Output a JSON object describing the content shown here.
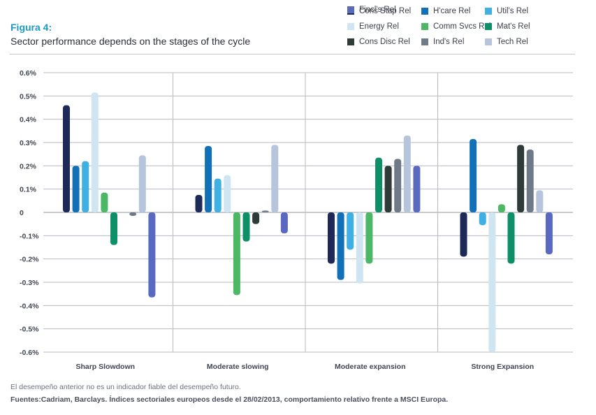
{
  "header": {
    "figure_label": "Figura 4:",
    "title": "Sector performance depends on the stages of the cycle"
  },
  "footer": {
    "note": "El desempeño anterior no es un indicador fiable del desempeño futuro.",
    "source": "Fuentes:Cadriam, Barclays. Índices sectoriales europeos desde el 28/02/2013, comportamiento relativo frente a MSCI Europa."
  },
  "chart_data": {
    "type": "bar",
    "title": "Sector performance depends on the stages of the cycle",
    "xlabel": "",
    "ylabel": "",
    "ylim": [
      -0.6,
      0.6
    ],
    "y_ticks": [
      0.6,
      0.5,
      0.4,
      0.3,
      0.2,
      0.1,
      0,
      -0.1,
      -0.2,
      -0.3,
      -0.4,
      -0.5,
      -0.6
    ],
    "y_tick_labels": [
      "0.6%",
      "0.5%",
      "0.4%",
      "0.3%",
      "0.2%",
      "0.1%",
      "0",
      "-0.1%",
      "-0.2%",
      "-0.3%",
      "-0.4%",
      "-0.5%",
      "-0.6%"
    ],
    "grid": true,
    "legend_position": "top-right",
    "categories": [
      "Sharp Slowdown",
      "Moderate slowing",
      "Moderate expansion",
      "Strong Expansion"
    ],
    "series": [
      {
        "name": "Cons Stap Rel",
        "color": "#1d2a57",
        "values": [
          0.46,
          0.075,
          -0.22,
          -0.19
        ]
      },
      {
        "name": "H'care Rel",
        "color": "#1170b8",
        "values": [
          0.2,
          0.285,
          -0.29,
          0.315
        ]
      },
      {
        "name": "Util's Rel",
        "color": "#3fb0e3",
        "values": [
          0.22,
          0.145,
          -0.16,
          -0.055
        ]
      },
      {
        "name": "Energy Rel",
        "color": "#cfe6f2",
        "values": [
          0.515,
          0.16,
          -0.305,
          -0.6
        ]
      },
      {
        "name": "Comm Svcs Rel",
        "color": "#4cb865",
        "values": [
          0.085,
          -0.355,
          -0.22,
          0.035
        ]
      },
      {
        "name": "Mat's Rel",
        "color": "#0d9068",
        "values": [
          -0.14,
          -0.125,
          0.235,
          -0.22
        ]
      },
      {
        "name": "Cons Disc Rel",
        "color": "#2e3b38",
        "values": [
          0.0,
          -0.05,
          0.2,
          0.29
        ]
      },
      {
        "name": "Ind's Rel",
        "color": "#6f7a88",
        "values": [
          -0.015,
          0.008,
          0.23,
          0.27
        ]
      },
      {
        "name": "Tech Rel",
        "color": "#b6c5dc",
        "values": [
          0.245,
          0.29,
          0.33,
          0.095
        ]
      },
      {
        "name": "Fincl's Rel",
        "color": "#5969bf",
        "values": [
          -0.365,
          -0.09,
          0.2,
          -0.18
        ]
      }
    ]
  }
}
